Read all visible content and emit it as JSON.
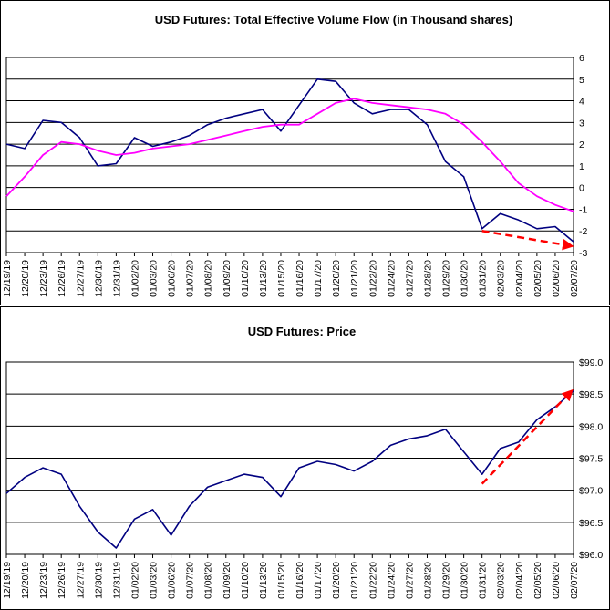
{
  "chart_data": [
    {
      "type": "line",
      "title": "USD Futures: Total Effective Volume Flow (in Thousand shares)",
      "categories": [
        "12/19/19",
        "12/20/19",
        "12/23/19",
        "12/26/19",
        "12/27/19",
        "12/30/19",
        "12/31/19",
        "01/02/20",
        "01/03/20",
        "01/06/20",
        "01/07/20",
        "01/08/20",
        "01/09/20",
        "01/10/20",
        "01/13/20",
        "01/15/20",
        "01/16/20",
        "01/17/20",
        "01/20/20",
        "01/21/20",
        "01/22/20",
        "01/24/20",
        "01/27/20",
        "01/28/20",
        "01/29/20",
        "01/30/20",
        "01/31/20",
        "02/03/20",
        "02/04/20",
        "02/05/20",
        "02/06/20",
        "02/07/20"
      ],
      "y_axis": {
        "min": -3,
        "max": 6,
        "ticks": [
          "-3",
          "-2",
          "-1",
          "0",
          "1",
          "2",
          "3",
          "4",
          "5",
          "6"
        ],
        "position": "right"
      },
      "grid": true,
      "series": [
        {
          "color": "#000080",
          "values": [
            2.0,
            1.8,
            3.1,
            3.0,
            2.3,
            1.0,
            1.1,
            2.3,
            1.9,
            2.1,
            2.4,
            2.9,
            3.2,
            3.4,
            3.6,
            2.6,
            3.8,
            5.0,
            4.9,
            3.9,
            3.4,
            3.6,
            3.6,
            2.9,
            1.2,
            0.5,
            -1.9,
            -1.2,
            -1.5,
            -1.9,
            -1.8,
            -2.5
          ]
        },
        {
          "color": "#ff00ff",
          "values": [
            -0.4,
            0.5,
            1.5,
            2.1,
            2.0,
            1.7,
            1.5,
            1.6,
            1.8,
            1.9,
            2.0,
            2.2,
            2.4,
            2.6,
            2.8,
            2.9,
            2.9,
            3.4,
            3.9,
            4.1,
            3.9,
            3.8,
            3.7,
            3.6,
            3.4,
            2.9,
            2.1,
            1.2,
            0.2,
            -0.4,
            -0.8,
            -1.1
          ]
        }
      ],
      "annotation": {
        "type": "trend-arrow",
        "color": "#ff0000",
        "from": {
          "category": "01/31/20",
          "y": -2.0
        },
        "to": {
          "category": "02/07/20",
          "y": -2.7
        }
      }
    },
    {
      "type": "line",
      "title": "USD Futures: Price",
      "categories": [
        "12/19/19",
        "12/20/19",
        "12/23/19",
        "12/26/19",
        "12/27/19",
        "12/30/19",
        "12/31/19",
        "01/02/20",
        "01/03/20",
        "01/06/20",
        "01/07/20",
        "01/08/20",
        "01/09/20",
        "01/10/20",
        "01/13/20",
        "01/15/20",
        "01/16/20",
        "01/17/20",
        "01/20/20",
        "01/21/20",
        "01/22/20",
        "01/24/20",
        "01/27/20",
        "01/28/20",
        "01/29/20",
        "01/30/20",
        "01/31/20",
        "02/03/20",
        "02/04/20",
        "02/05/20",
        "02/06/20",
        "02/07/20"
      ],
      "y_axis": {
        "min": 96.0,
        "max": 99.0,
        "ticks": [
          "$96.0",
          "$96.5",
          "$97.0",
          "$97.5",
          "$98.0",
          "$98.5",
          "$99.0"
        ],
        "position": "right"
      },
      "grid": true,
      "series": [
        {
          "color": "#000080",
          "values": [
            96.95,
            97.2,
            97.35,
            97.25,
            96.75,
            96.35,
            96.1,
            96.55,
            96.7,
            96.3,
            96.75,
            97.05,
            97.15,
            97.25,
            97.2,
            96.9,
            97.35,
            97.45,
            97.4,
            97.3,
            97.45,
            97.7,
            97.8,
            97.85,
            97.95,
            97.6,
            97.25,
            97.65,
            97.75,
            98.1,
            98.3,
            98.55
          ]
        }
      ],
      "annotation": {
        "type": "trend-arrow",
        "color": "#ff0000",
        "from": {
          "category": "01/31/20",
          "y": 97.1
        },
        "to": {
          "category": "02/07/20",
          "y": 98.55
        }
      }
    }
  ]
}
